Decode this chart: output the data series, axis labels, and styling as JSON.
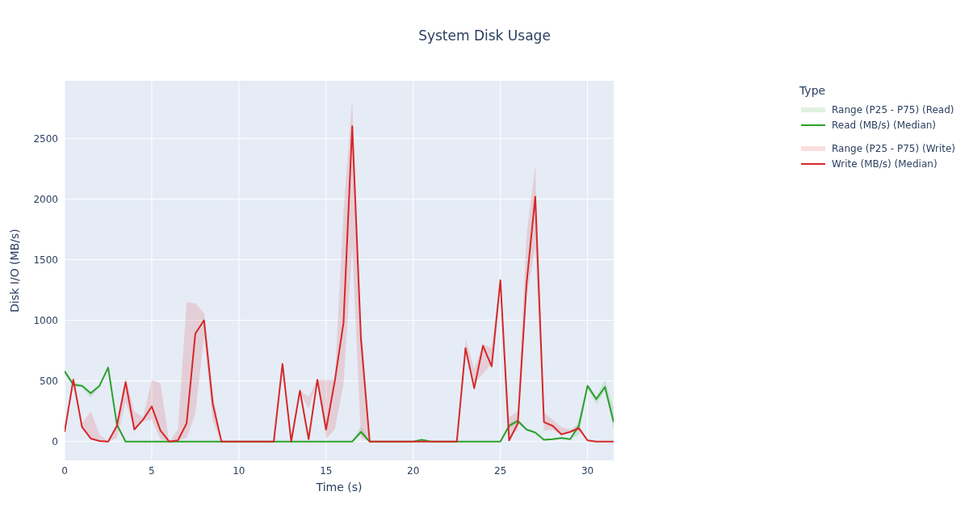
{
  "chart_data": {
    "type": "line",
    "title": "System Disk Usage",
    "xlabel": "Time (s)",
    "ylabel": "Disk I/O (MB/s)",
    "legend_title": "Type",
    "legend": "top right",
    "grid": true,
    "annotations": [
      "Range (P25 - P75) (Read)",
      "Range (P25 - P75) (Write)"
    ],
    "xlim": [
      0,
      31.5
    ],
    "xticks": [
      0,
      5,
      10,
      15,
      20,
      25,
      30
    ],
    "ylim": [
      -155,
      2975
    ],
    "yticks": [
      0,
      500,
      1000,
      1500,
      2000,
      2500
    ],
    "x": [
      0,
      0.5,
      1,
      1.5,
      2,
      2.5,
      3,
      3.5,
      4,
      4.5,
      5,
      5.5,
      6,
      6.5,
      7,
      7.5,
      8,
      8.5,
      9,
      9.5,
      10,
      10.5,
      11,
      11.5,
      12,
      12.5,
      13,
      13.5,
      14,
      14.5,
      15,
      15.5,
      16,
      16.5,
      17,
      17.5,
      18,
      18.5,
      19,
      19.5,
      20,
      20.5,
      21,
      21.5,
      22,
      22.5,
      23,
      23.5,
      24,
      24.5,
      25,
      25.5,
      26,
      26.5,
      27,
      27.5,
      28,
      28.5,
      29,
      29.5,
      30,
      30.5,
      31,
      31.5
    ],
    "series": [
      {
        "name": "Read (MB/s) (Median)",
        "color": "#2ca02c",
        "values": [
          580,
          470,
          460,
          400,
          460,
          610,
          140,
          0,
          0,
          0,
          0,
          0,
          0,
          0,
          0,
          0,
          0,
          0,
          0,
          0,
          0,
          0,
          0,
          0,
          0,
          0,
          0,
          0,
          0,
          0,
          0,
          0,
          0,
          0,
          80,
          0,
          0,
          0,
          0,
          0,
          0,
          15,
          0,
          0,
          0,
          0,
          0,
          0,
          0,
          0,
          0,
          130,
          170,
          100,
          75,
          15,
          20,
          30,
          20,
          130,
          460,
          350,
          450,
          160
        ],
        "lower": [
          560,
          460,
          450,
          360,
          450,
          600,
          130,
          0,
          0,
          0,
          0,
          0,
          0,
          0,
          0,
          0,
          0,
          0,
          0,
          0,
          0,
          0,
          0,
          0,
          0,
          0,
          0,
          0,
          0,
          0,
          0,
          0,
          0,
          0,
          60,
          0,
          0,
          0,
          0,
          0,
          0,
          10,
          0,
          0,
          0,
          0,
          0,
          0,
          0,
          0,
          0,
          110,
          150,
          90,
          70,
          10,
          15,
          25,
          15,
          60,
          440,
          310,
          420,
          100
        ],
        "upper": [
          600,
          490,
          470,
          410,
          470,
          630,
          150,
          0,
          0,
          0,
          0,
          0,
          0,
          0,
          0,
          0,
          0,
          0,
          0,
          0,
          0,
          0,
          0,
          0,
          0,
          0,
          0,
          0,
          0,
          0,
          0,
          0,
          0,
          0,
          130,
          0,
          0,
          0,
          0,
          0,
          0,
          20,
          0,
          0,
          0,
          0,
          0,
          0,
          0,
          0,
          0,
          150,
          190,
          110,
          80,
          20,
          25,
          35,
          25,
          180,
          480,
          370,
          510,
          280
        ]
      },
      {
        "name": "Write (MB/s) (Median)",
        "color": "#d62728",
        "values": [
          80,
          510,
          120,
          25,
          5,
          0,
          130,
          490,
          100,
          180,
          290,
          90,
          0,
          10,
          150,
          890,
          1000,
          310,
          0,
          0,
          0,
          0,
          0,
          0,
          0,
          640,
          0,
          420,
          20,
          510,
          100,
          500,
          980,
          2600,
          850,
          0,
          0,
          0,
          0,
          0,
          0,
          0,
          0,
          0,
          0,
          0,
          770,
          440,
          790,
          620,
          1330,
          10,
          150,
          1300,
          2020,
          160,
          130,
          60,
          80,
          110,
          10,
          0,
          0,
          0
        ],
        "lower": [
          80,
          480,
          120,
          20,
          0,
          0,
          30,
          330,
          100,
          170,
          180,
          20,
          0,
          10,
          30,
          230,
          870,
          170,
          0,
          0,
          0,
          0,
          0,
          0,
          0,
          640,
          0,
          400,
          270,
          510,
          20,
          100,
          470,
          1600,
          30,
          0,
          0,
          0,
          0,
          0,
          0,
          0,
          0,
          0,
          0,
          0,
          760,
          480,
          560,
          640,
          1300,
          30,
          100,
          1200,
          1600,
          90,
          100,
          60,
          80,
          90,
          10,
          0,
          0,
          0
        ],
        "upper": [
          80,
          540,
          150,
          250,
          60,
          0,
          150,
          530,
          250,
          200,
          510,
          480,
          0,
          100,
          1150,
          1140,
          1060,
          400,
          0,
          0,
          0,
          0,
          0,
          0,
          0,
          640,
          0,
          420,
          370,
          510,
          510,
          510,
          1900,
          2820,
          1000,
          0,
          0,
          0,
          0,
          0,
          0,
          0,
          0,
          0,
          0,
          0,
          840,
          600,
          800,
          770,
          1360,
          200,
          250,
          1700,
          2280,
          240,
          180,
          120,
          100,
          140,
          10,
          0,
          0,
          0
        ]
      }
    ]
  }
}
